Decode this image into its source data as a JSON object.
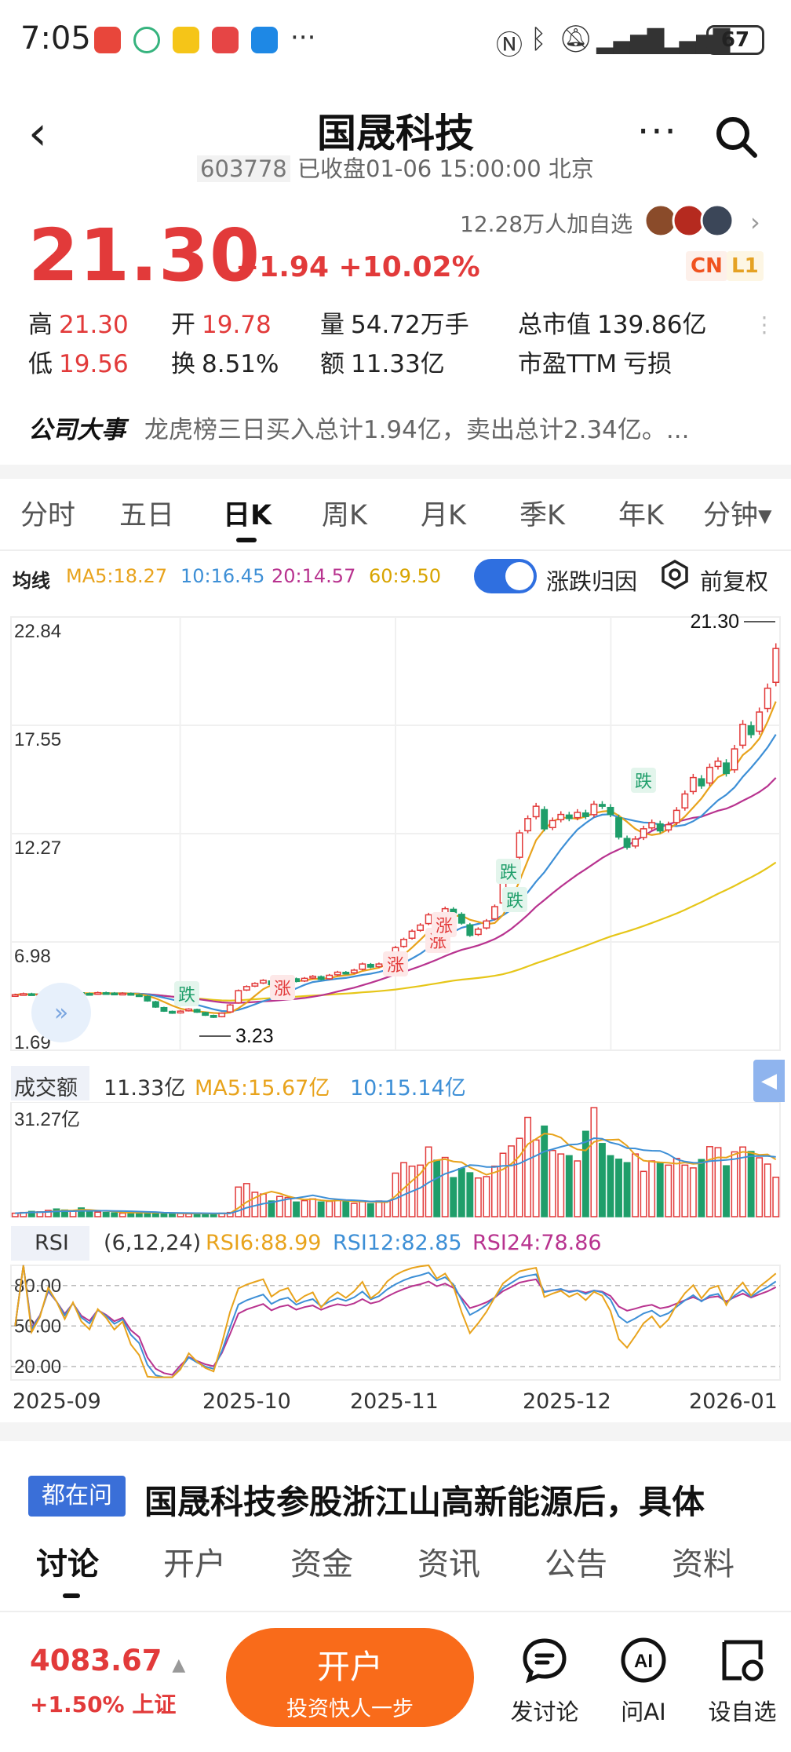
{
  "status_bar": {
    "time": "7:05",
    "battery": "67",
    "more": "···"
  },
  "header": {
    "title": "国晟科技",
    "code": "603778",
    "status": "已收盘01-06 15:00:00 北京",
    "more_label": "···"
  },
  "quote": {
    "price": "21.30",
    "change": "+1.94",
    "change_pct": "+10.02%",
    "watchers": "12.28万人加自选",
    "badge_cn": "CN",
    "badge_l1": "L1",
    "stats": [
      {
        "label": "高",
        "value": "21.30",
        "tone": "red"
      },
      {
        "label": "开",
        "value": "19.78",
        "tone": "red"
      },
      {
        "label": "量",
        "value": "54.72万手",
        "tone": "plain"
      },
      {
        "label": "总市值",
        "value": "139.86亿",
        "tone": "plain"
      },
      {
        "label": "低",
        "value": "19.56",
        "tone": "red"
      },
      {
        "label": "换",
        "value": "8.51%",
        "tone": "plain"
      },
      {
        "label": "额",
        "value": "11.33亿",
        "tone": "plain"
      },
      {
        "label": "市盈TTM",
        "value": "亏损",
        "tone": "plain"
      }
    ],
    "event_label": "公司大事",
    "event_text": "龙虎榜三日买入总计1.94亿，卖出总计2.34亿。..."
  },
  "chart_tabs": [
    "分时",
    "五日",
    "日K",
    "周K",
    "月K",
    "季K",
    "年K",
    "分钟▾"
  ],
  "chart_tab_active": 2,
  "ma_row": {
    "label": "均线",
    "ma5": "MA5:18.27",
    "ma10": "10:16.45",
    "ma20": "20:14.57",
    "ma60": "60:9.50",
    "toggle_label": "涨跌归因",
    "adj_label": "前复权"
  },
  "colors": {
    "up": "#e23a3a",
    "down": "#1f9e6a",
    "ma5": "#e8a31c",
    "ma10": "#3d8fd6",
    "ma20": "#b8338f",
    "ma60": "#e6c619"
  },
  "chart_data": {
    "type": "candlestick",
    "y_ticks": [
      "22.84",
      "17.55",
      "12.27",
      "6.98",
      "1.69"
    ],
    "ylim": [
      1.69,
      22.84
    ],
    "x_ticks": [
      "2025-09",
      "2025-10",
      "2025-11",
      "2025-12",
      "2026-01"
    ],
    "high_label": "21.30",
    "low_label": "3.23",
    "markers": [
      "涨",
      "涨",
      "涨",
      "涨",
      "跌",
      "跌",
      "跌",
      "跌"
    ],
    "close": [
      4.4,
      4.45,
      4.4,
      4.42,
      4.5,
      4.48,
      4.45,
      4.5,
      4.46,
      4.44,
      4.5,
      4.48,
      4.45,
      4.47,
      4.4,
      4.35,
      4.1,
      3.8,
      3.6,
      3.5,
      3.6,
      3.7,
      3.55,
      3.4,
      3.3,
      3.5,
      3.9,
      4.6,
      4.8,
      4.95,
      5.1,
      4.9,
      5.1,
      5.2,
      5.05,
      5.2,
      5.3,
      5.15,
      5.35,
      5.5,
      5.45,
      5.6,
      5.9,
      5.75,
      5.9,
      6.3,
      6.7,
      7.1,
      7.5,
      7.8,
      8.3,
      8.1,
      8.6,
      8.4,
      7.9,
      7.3,
      7.6,
      8.0,
      8.7,
      9.9,
      10.9,
      12.3,
      13.0,
      13.6,
      12.5,
      12.9,
      13.2,
      13.0,
      13.3,
      13.1,
      13.7,
      13.6,
      13.2,
      12.1,
      11.6,
      12.0,
      12.5,
      12.8,
      12.4,
      12.7,
      13.4,
      14.2,
      15.0,
      14.6,
      15.5,
      15.8,
      15.2,
      16.4,
      17.6,
      17.1,
      18.2,
      19.36,
      21.3
    ],
    "volume": {
      "label": "成交额",
      "amount": "11.33亿",
      "ma5": "MA5:15.67亿",
      "ma10": "10:15.14亿",
      "max_tick": "31.27亿",
      "values": [
        1,
        1.2,
        1.5,
        1.4,
        1.8,
        2.2,
        1.9,
        1.6,
        2.5,
        1.5,
        1.3,
        1.2,
        1.1,
        1,
        1.2,
        1.3,
        1.1,
        1,
        0.9,
        1,
        0.9,
        0.8,
        0.9,
        0.9,
        0.9,
        1,
        1.2,
        8.5,
        9.5,
        7,
        6.5,
        4.5,
        5.8,
        5.5,
        4.2,
        4.6,
        5.1,
        4.2,
        4.4,
        4.9,
        4.6,
        3.8,
        4.3,
        3.7,
        4.5,
        4.4,
        12.5,
        15.5,
        14.5,
        14.8,
        20,
        16.2,
        17,
        11.2,
        13.8,
        12.6,
        11.1,
        11.5,
        14.5,
        18.2,
        20.3,
        22.5,
        28.5,
        22,
        26,
        19,
        18,
        17.5,
        16,
        24.5,
        31.3,
        21,
        17.5,
        16.5,
        15.5,
        18,
        13,
        16,
        15.5,
        14.8,
        16.7,
        14.8,
        14,
        16.4,
        20.1,
        19.8,
        14.6,
        18.6,
        20,
        18.7,
        16.9,
        15.1,
        11.3
      ]
    },
    "rsi": {
      "label": "RSI",
      "params": "(6,12,24)",
      "rsi6": "RSI6:88.99",
      "rsi12": "RSI12:82.85",
      "rsi24": "RSI24:78.86",
      "ticks": [
        "80.00",
        "50.00",
        "20.00"
      ]
    }
  },
  "news": {
    "tag": "都在问",
    "headline": "国晟科技参股浙江山高新能源后，具体"
  },
  "sub_tabs": [
    "讨论",
    "开户",
    "资金",
    "资讯",
    "公告",
    "资料"
  ],
  "sub_tab_active": 0,
  "bottom": {
    "index_value": "4083.67",
    "index_change": "+1.50% 上证",
    "open_btn": "开户",
    "open_btn_sub": "投资快人一步",
    "tools": [
      "发讨论",
      "问AI",
      "设自选"
    ],
    "ai_glyph": "AI"
  }
}
